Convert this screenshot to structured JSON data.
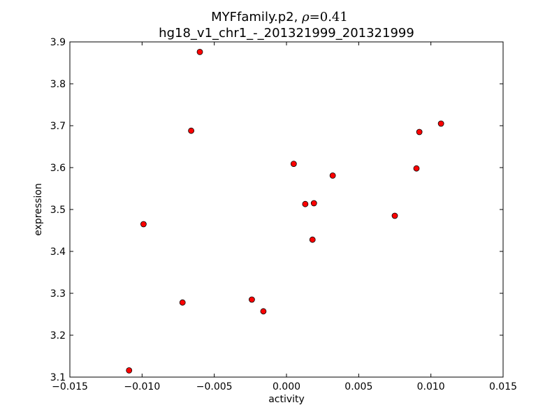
{
  "chart_data": {
    "type": "scatter",
    "title_line1_prefix": "MYFfamily.p2, ",
    "title_line1_rho_symbol": "ρ",
    "title_line1_rho_value": "=0.41",
    "title_line2": "hg18_v1_chr1_-_201321999_201321999",
    "xlabel": "activity",
    "ylabel": "expression",
    "xlim": [
      -0.015,
      0.015
    ],
    "ylim": [
      3.1,
      3.9
    ],
    "xticks": [
      -0.015,
      -0.01,
      -0.005,
      0.0,
      0.005,
      0.01,
      0.015
    ],
    "xtick_labels": [
      "−0.015",
      "−0.010",
      "−0.005",
      "0.000",
      "0.005",
      "0.010",
      "0.015"
    ],
    "yticks": [
      3.1,
      3.2,
      3.3,
      3.4,
      3.5,
      3.6,
      3.7,
      3.8,
      3.9
    ],
    "ytick_labels": [
      "3.1",
      "3.2",
      "3.3",
      "3.4",
      "3.5",
      "3.6",
      "3.7",
      "3.8",
      "3.9"
    ],
    "grid": false,
    "marker_color": "#ff0000",
    "marker_edge": "#000000",
    "points": [
      {
        "x": -0.006,
        "y": 3.876
      },
      {
        "x": -0.0066,
        "y": 3.688
      },
      {
        "x": -0.0099,
        "y": 3.465
      },
      {
        "x": -0.0072,
        "y": 3.278
      },
      {
        "x": -0.0109,
        "y": 3.116
      },
      {
        "x": -0.0024,
        "y": 3.285
      },
      {
        "x": -0.0016,
        "y": 3.257
      },
      {
        "x": 0.0005,
        "y": 3.609
      },
      {
        "x": 0.0013,
        "y": 3.513
      },
      {
        "x": 0.0019,
        "y": 3.515
      },
      {
        "x": 0.0018,
        "y": 3.428
      },
      {
        "x": 0.0032,
        "y": 3.581
      },
      {
        "x": 0.0075,
        "y": 3.485
      },
      {
        "x": 0.009,
        "y": 3.598
      },
      {
        "x": 0.0092,
        "y": 3.685
      },
      {
        "x": 0.0107,
        "y": 3.705
      }
    ]
  }
}
